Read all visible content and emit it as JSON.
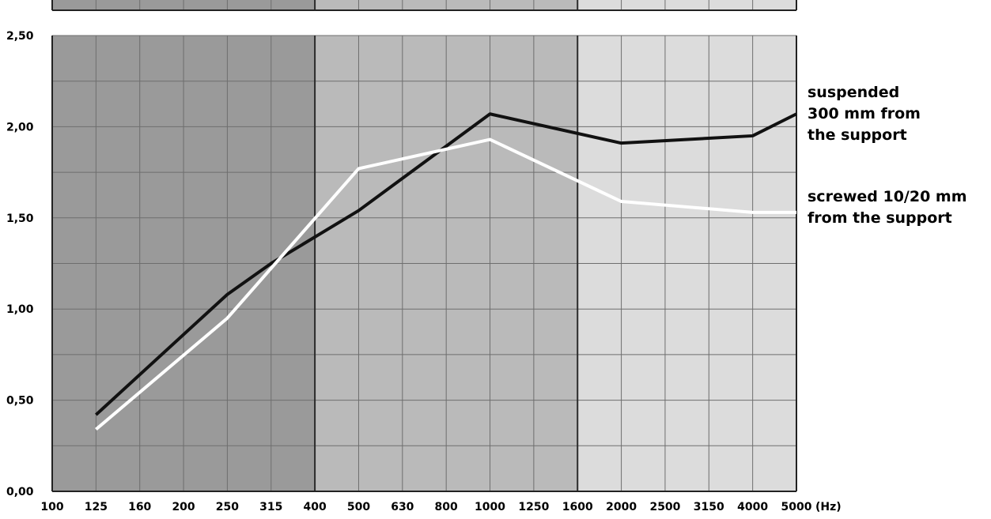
{
  "chart_data": {
    "type": "line",
    "title": "",
    "xlabel": "",
    "ylabel": "",
    "x_unit": "(Hz)",
    "x": [
      "100",
      "125",
      "160",
      "200",
      "250",
      "315",
      "400",
      "500",
      "630",
      "800",
      "1000",
      "1250",
      "1600",
      "2000",
      "2500",
      "3150",
      "4000",
      "5000"
    ],
    "y_ticks": [
      "0,00",
      "0,50",
      "1,00",
      "1,50",
      "2,00",
      "2,50"
    ],
    "ylim": [
      0,
      2.5
    ],
    "grid": true,
    "bands": [
      {
        "from": "100",
        "to": "400",
        "color": "#9a9a9a"
      },
      {
        "from": "400",
        "to": "1600",
        "color": "#bababa"
      },
      {
        "from": "1600",
        "to": "5000",
        "color": "#dcdcdc"
      }
    ],
    "series": [
      {
        "name": "suspended 300 mm from the support",
        "label_lines": [
          "suspended",
          "300 mm from",
          "the support"
        ],
        "color": "#111111",
        "points": [
          {
            "x": "125",
            "y": 0.42
          },
          {
            "x": "250",
            "y": 1.08
          },
          {
            "x": "315",
            "y": 1.25
          },
          {
            "x": "500",
            "y": 1.54
          },
          {
            "x": "1000",
            "y": 2.07
          },
          {
            "x": "2000",
            "y": 1.91
          },
          {
            "x": "4000",
            "y": 1.95
          },
          {
            "x": "5000",
            "y": 2.07
          }
        ]
      },
      {
        "name": "screwed 10/20 mm from the support",
        "label_lines": [
          "screwed 10/20 mm",
          "from the support"
        ],
        "color": "#ffffff",
        "points": [
          {
            "x": "125",
            "y": 0.34
          },
          {
            "x": "250",
            "y": 0.95
          },
          {
            "x": "500",
            "y": 1.77
          },
          {
            "x": "1000",
            "y": 1.93
          },
          {
            "x": "2000",
            "y": 1.59
          },
          {
            "x": "4000",
            "y": 1.53
          },
          {
            "x": "5000",
            "y": 1.53
          }
        ]
      }
    ]
  }
}
